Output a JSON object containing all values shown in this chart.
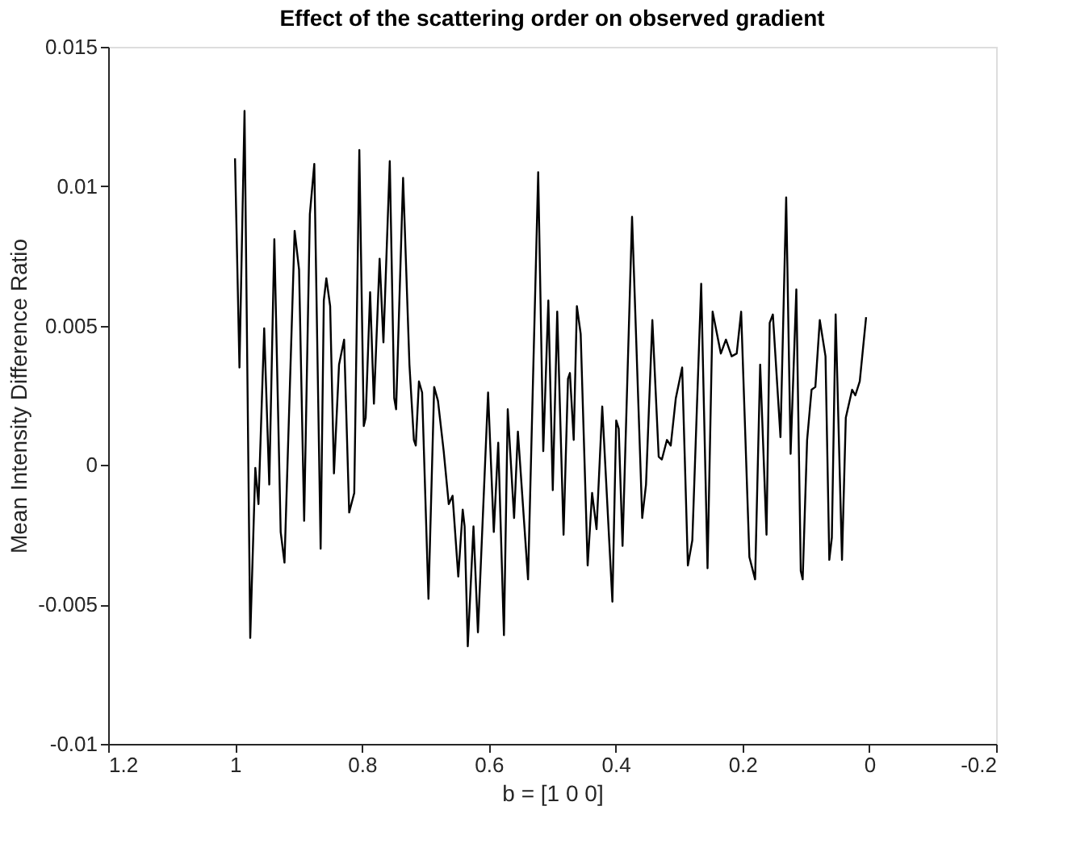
{
  "chart_data": {
    "type": "line",
    "title": "Effect of the scattering order on observed gradient",
    "xlabel": "b = [1  0  0]",
    "ylabel": "Mean Intensity Difference Ratio",
    "x": [
      1.0,
      0.993,
      0.985,
      0.976,
      0.968,
      0.963,
      0.954,
      0.946,
      0.938,
      0.928,
      0.922,
      0.906,
      0.899,
      0.891,
      0.882,
      0.875,
      0.865,
      0.86,
      0.856,
      0.85,
      0.844,
      0.836,
      0.828,
      0.82,
      0.812,
      0.804,
      0.797,
      0.794,
      0.787,
      0.781,
      0.772,
      0.766,
      0.756,
      0.749,
      0.746,
      0.735,
      0.725,
      0.718,
      0.715,
      0.71,
      0.705,
      0.695,
      0.686,
      0.68,
      0.671,
      0.663,
      0.657,
      0.648,
      0.641,
      0.638,
      0.633,
      0.624,
      0.617,
      0.601,
      0.592,
      0.585,
      0.576,
      0.57,
      0.56,
      0.554,
      0.538,
      0.522,
      0.514,
      0.506,
      0.499,
      0.492,
      0.482,
      0.475,
      0.472,
      0.466,
      0.461,
      0.455,
      0.444,
      0.437,
      0.43,
      0.421,
      0.405,
      0.399,
      0.395,
      0.389,
      0.374,
      0.358,
      0.352,
      0.342,
      0.332,
      0.327,
      0.319,
      0.313,
      0.305,
      0.295,
      0.286,
      0.279,
      0.265,
      0.255,
      0.247,
      0.234,
      0.226,
      0.217,
      0.209,
      0.202,
      0.189,
      0.18,
      0.172,
      0.162,
      0.157,
      0.152,
      0.14,
      0.131,
      0.124,
      0.115,
      0.108,
      0.105,
      0.098,
      0.091,
      0.085,
      0.078,
      0.069,
      0.063,
      0.059,
      0.053,
      0.043,
      0.037,
      0.027,
      0.022,
      0.015,
      0.005
    ],
    "series": [
      {
        "color": "#000000",
        "values": [
          0.011,
          0.0035,
          0.0127,
          -0.0062,
          -0.0001,
          -0.0014,
          0.0049,
          -0.0007,
          0.0081,
          -0.0024,
          -0.0035,
          0.0084,
          0.007,
          -0.002,
          0.009,
          0.0108,
          -0.003,
          0.0059,
          0.0067,
          0.0057,
          -0.0003,
          0.0036,
          0.0045,
          -0.0017,
          -0.001,
          0.0113,
          0.0014,
          0.0017,
          0.0062,
          0.0022,
          0.0074,
          0.0044,
          0.0109,
          0.0024,
          0.002,
          0.0103,
          0.0036,
          0.0009,
          0.0007,
          0.003,
          0.0026,
          -0.0048,
          0.0028,
          0.0023,
          0.0005,
          -0.0014,
          -0.0011,
          -0.004,
          -0.0016,
          -0.0022,
          -0.0065,
          -0.0022,
          -0.006,
          0.0026,
          -0.0024,
          0.0008,
          -0.0061,
          0.002,
          -0.0019,
          0.0012,
          -0.0041,
          0.0105,
          0.0005,
          0.0059,
          -0.0009,
          0.0055,
          -0.0025,
          0.0031,
          0.0033,
          0.0009,
          0.0057,
          0.0047,
          -0.0036,
          -0.001,
          -0.0023,
          0.0021,
          -0.0049,
          0.0016,
          0.0013,
          -0.0029,
          0.0089,
          -0.0019,
          -0.0007,
          0.0052,
          0.0003,
          0.0002,
          0.0009,
          0.0007,
          0.0024,
          0.0035,
          -0.0036,
          -0.0027,
          0.0065,
          -0.0037,
          0.0055,
          0.004,
          0.0045,
          0.0039,
          0.004,
          0.0055,
          -0.0033,
          -0.0041,
          0.0036,
          -0.0025,
          0.0051,
          0.0054,
          0.001,
          0.0096,
          0.0004,
          0.0063,
          -0.0038,
          -0.0041,
          0.0009,
          0.0027,
          0.0028,
          0.0052,
          0.0039,
          -0.0034,
          -0.0026,
          0.0054,
          -0.0034,
          0.0017,
          0.0027,
          0.0025,
          0.003,
          0.0053
        ]
      }
    ],
    "xlim": [
      1.2,
      -0.2
    ],
    "xticks": [
      1.2,
      1,
      0.8,
      0.6,
      0.4,
      0.2,
      0,
      -0.2
    ],
    "ylim": [
      -0.01,
      0.015
    ],
    "yticks": [
      -0.01,
      -0.005,
      0,
      0.005,
      0.01,
      0.015
    ],
    "grid": false,
    "legend": false,
    "line_style": "solid",
    "marker": "none"
  }
}
